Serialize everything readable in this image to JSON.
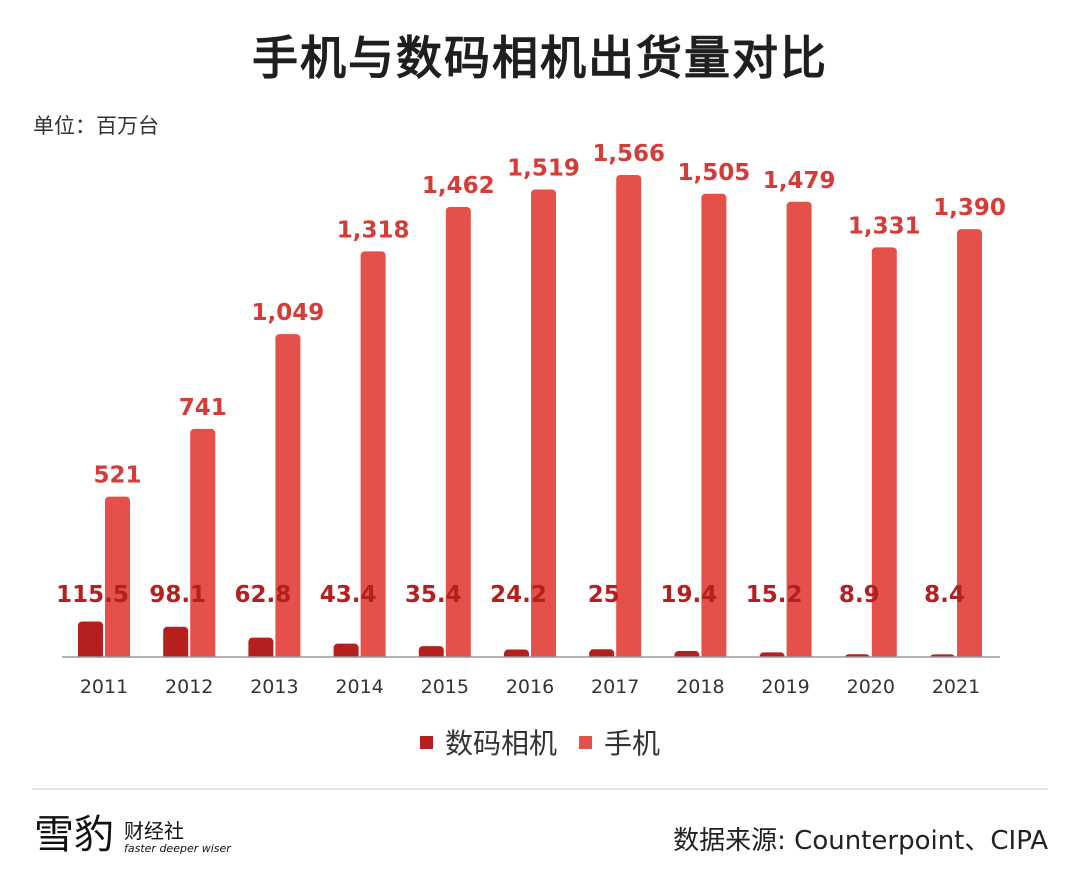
{
  "title": "手机与数码相机出货量对比",
  "unit_label": "单位：百万台",
  "source": "数据来源: Counterpoint、CIPA",
  "logo": {
    "main": "雪豹",
    "sub": "财经社",
    "tagline": "faster deeper wiser"
  },
  "colors": {
    "camera": "#b5201f",
    "phone": "#e5504a",
    "axis": "#999999",
    "tick": "#333333",
    "label": "#d63c37"
  },
  "chart_data": {
    "type": "bar",
    "title": "手机与数码相机出货量对比",
    "ylabel": "单位：百万台",
    "categories": [
      "2011",
      "2012",
      "2013",
      "2014",
      "2015",
      "2016",
      "2017",
      "2018",
      "2019",
      "2020",
      "2021"
    ],
    "series": [
      {
        "name": "数码相机",
        "values": [
          115.5,
          98.1,
          62.8,
          43.4,
          35.4,
          24.2,
          25,
          19.4,
          15.2,
          8.9,
          8.4
        ],
        "labels": [
          "115.5",
          "98.1",
          "62.8",
          "43.4",
          "35.4",
          "24.2",
          "25",
          "19.4",
          "15.2",
          "8.9",
          "8.4"
        ]
      },
      {
        "name": "手机",
        "values": [
          521,
          741,
          1049,
          1318,
          1462,
          1519,
          1566,
          1505,
          1479,
          1331,
          1390
        ],
        "labels": [
          "521",
          "741",
          "1,049",
          "1,318",
          "1,462",
          "1,519",
          "1,566",
          "1,505",
          "1,479",
          "1,331",
          "1,390"
        ]
      }
    ],
    "ylim": [
      0,
      1566
    ],
    "legend": "bottom"
  }
}
